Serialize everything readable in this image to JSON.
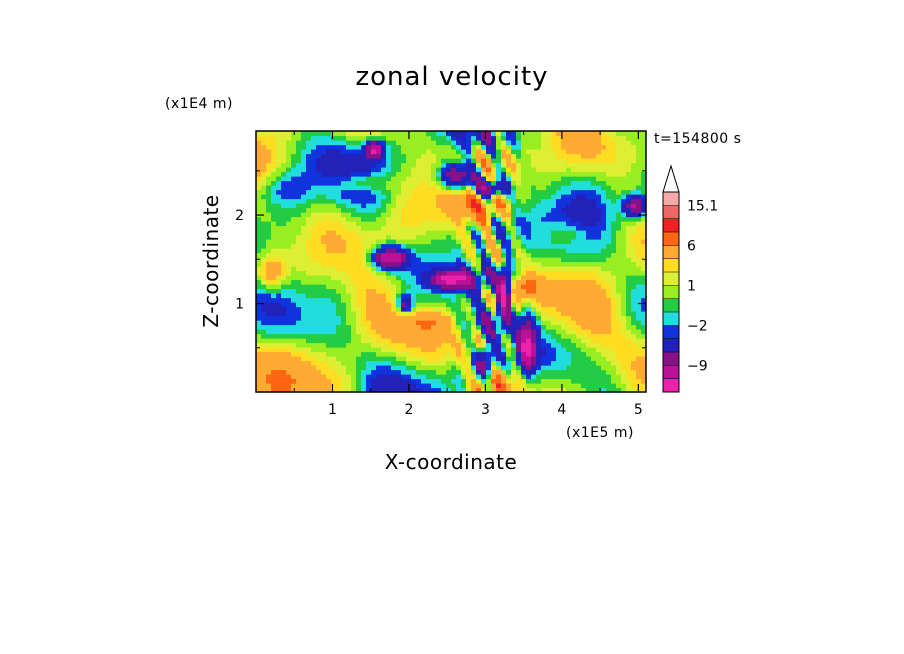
{
  "chart_data": {
    "type": "heatmap",
    "title": "zonal velocity",
    "xlabel": "X-coordinate",
    "ylabel": "Z-coordinate",
    "x_unit": "(x1E5 m)",
    "y_unit": "(x1E4 m)",
    "time_label": "t=154800 s",
    "xlim": [
      0,
      5.1
    ],
    "ylim": [
      0,
      2.95
    ],
    "x_ticks": [
      1,
      2,
      3,
      4,
      5
    ],
    "y_ticks": [
      1,
      2
    ],
    "x_tick_labels": [
      "1",
      "2",
      "3",
      "4",
      "5"
    ],
    "y_tick_labels": [
      "1",
      "2"
    ],
    "colorbar": {
      "levels": [
        -15.1,
        -12,
        -9,
        -6,
        -3,
        -2,
        -1,
        0,
        1,
        2,
        3,
        6,
        9,
        12,
        15.1
      ],
      "colors": [
        "#ee22aa",
        "#bb1199",
        "#881188",
        "#2222bb",
        "#1133dd",
        "#22dddd",
        "#22cc44",
        "#99ee22",
        "#ddee33",
        "#ffdd22",
        "#ffaa33",
        "#ff6611",
        "#ee2222",
        "#ee6666",
        "#f5aaaa"
      ],
      "labels": [
        {
          "value": -9,
          "text": "−9"
        },
        {
          "value": -2,
          "text": "−2"
        },
        {
          "value": 1,
          "text": "1"
        },
        {
          "value": 6,
          "text": "6"
        },
        {
          "value": 15.1,
          "text": "15.1"
        }
      ],
      "extend": "max"
    },
    "field_range": [
      -15.1,
      15.1
    ]
  }
}
